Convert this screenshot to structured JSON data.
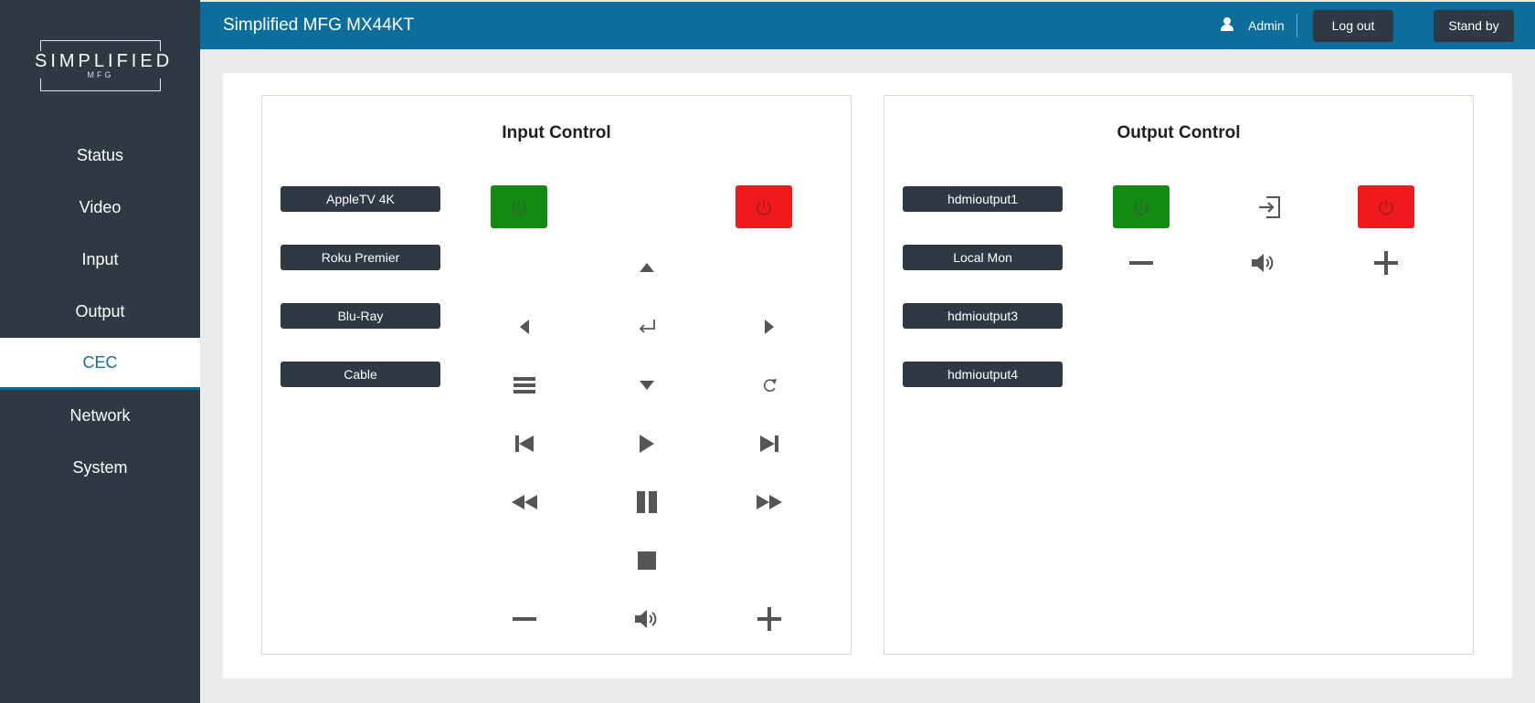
{
  "logo": {
    "brand": "SIMPLIFIED",
    "sub": "MFG"
  },
  "nav": {
    "items": [
      {
        "label": "Status"
      },
      {
        "label": "Video"
      },
      {
        "label": "Input"
      },
      {
        "label": "Output"
      },
      {
        "label": "CEC",
        "active": true
      },
      {
        "label": "Network"
      },
      {
        "label": "System"
      }
    ]
  },
  "header": {
    "title": "Simplified MFG MX44KT",
    "user": "Admin",
    "logout_label": "Log out",
    "standby_label": "Stand by",
    "bg_color": "#0d6e9c"
  },
  "input_control": {
    "title": "Input Control",
    "devices": [
      "AppleTV 4K",
      "Roku Premier",
      "Blu-Ray",
      "Cable"
    ],
    "icons": [
      "power-on-icon",
      "power-off-icon",
      "arrow-up-icon",
      "arrow-left-icon",
      "enter-icon",
      "arrow-right-icon",
      "menu-icon",
      "arrow-down-icon",
      "refresh-icon",
      "skip-back-icon",
      "play-icon",
      "skip-forward-icon",
      "rewind-icon",
      "pause-icon",
      "fast-forward-icon",
      "stop-icon",
      "volume-down-icon",
      "mute-icon",
      "volume-up-icon"
    ]
  },
  "output_control": {
    "title": "Output Control",
    "devices": [
      "hdmioutput1",
      "Local Mon",
      "hdmioutput3",
      "hdmioutput4"
    ],
    "icons": [
      "power-on-icon",
      "input-select-icon",
      "power-off-icon",
      "volume-down-icon",
      "mute-icon",
      "volume-up-icon"
    ]
  },
  "colors": {
    "sidebar": "#2f3943",
    "accent": "#0d6e9c",
    "power_on": "#138a13",
    "power_off": "#f0191e"
  }
}
